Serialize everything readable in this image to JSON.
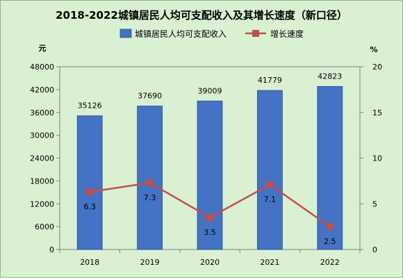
{
  "chart_data": {
    "type": "bar+line",
    "title": "2018-2022城镇居民人均可支配收入及其增长速度（新口径）",
    "categories": [
      "2018",
      "2019",
      "2020",
      "2021",
      "2022"
    ],
    "series": [
      {
        "name": "城镇居民人均可支配收入",
        "type": "bar",
        "axis": "left",
        "values": [
          35126,
          37690,
          39009,
          41779,
          42823
        ],
        "color": "#4472c4"
      },
      {
        "name": "增长速度",
        "type": "line",
        "axis": "right",
        "values": [
          6.3,
          7.3,
          3.5,
          7.1,
          2.5
        ],
        "color": "#c0504d"
      }
    ],
    "y_left": {
      "unit": "元",
      "ylim": [
        0,
        48000
      ],
      "ticks": [
        0,
        6000,
        12000,
        18000,
        24000,
        30000,
        36000,
        42000,
        48000
      ]
    },
    "y_right": {
      "unit": "%",
      "ylim": [
        0,
        20
      ],
      "ticks": [
        0,
        5,
        10,
        15,
        20
      ]
    },
    "grid": false,
    "legend": "top"
  }
}
